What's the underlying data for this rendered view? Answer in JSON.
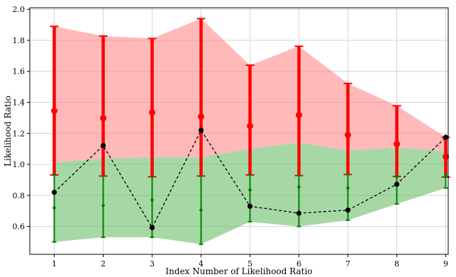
{
  "chart_data": {
    "type": "line",
    "title": "",
    "xlabel": "Index Number of Likelihood Ratio",
    "ylabel": "Likelihood Ratio",
    "xlim": [
      0.5,
      9.05
    ],
    "ylim": [
      0.42,
      2.01
    ],
    "x": [
      1,
      2,
      3,
      4,
      5,
      6,
      7,
      8,
      9
    ],
    "xticks": [
      "1",
      "2",
      "3",
      "4",
      "5",
      "6",
      "7",
      "8",
      "9"
    ],
    "yticks": [
      "0.6",
      "0.8",
      "1.0",
      "1.2",
      "1.4",
      "1.6",
      "1.8",
      "2.0"
    ],
    "grid": true,
    "colors": {
      "red": "#ff0000",
      "red_band": "#ff8080",
      "green": "#008000",
      "green_band": "#5cb85c",
      "line": "#000000"
    },
    "series": [
      {
        "kind": "errorbar",
        "color": "red",
        "center": [
          1.345,
          1.298,
          1.335,
          1.308,
          1.248,
          1.318,
          1.19,
          1.132,
          1.05
        ],
        "lower": [
          0.932,
          0.925,
          0.92,
          0.925,
          0.932,
          0.928,
          0.935,
          0.922,
          0.918
        ],
        "upper": [
          1.89,
          1.828,
          1.812,
          1.94,
          1.64,
          1.762,
          1.522,
          1.378,
          1.175
        ]
      },
      {
        "kind": "errorbar",
        "color": "green",
        "center": [
          0.72,
          0.735,
          0.77,
          0.705,
          0.835,
          0.855,
          0.848,
          0.922,
          0.93
        ],
        "lower": [
          0.5,
          0.53,
          0.53,
          0.485,
          0.63,
          0.6,
          0.64,
          0.745,
          0.848
        ],
        "upper": [
          0.932,
          0.925,
          0.92,
          0.925,
          0.932,
          0.928,
          0.935,
          0.922,
          0.918
        ]
      },
      {
        "kind": "band",
        "color": "red_band",
        "lower": [
          1.012,
          1.038,
          1.045,
          1.045,
          1.1,
          1.14,
          1.09,
          1.108,
          1.085
        ],
        "upper": [
          1.89,
          1.828,
          1.812,
          1.94,
          1.64,
          1.762,
          1.522,
          1.378,
          1.175
        ]
      },
      {
        "kind": "band",
        "color": "green_band",
        "lower": [
          0.5,
          0.53,
          0.53,
          0.485,
          0.63,
          0.6,
          0.64,
          0.745,
          0.848
        ],
        "upper": [
          1.012,
          1.038,
          1.045,
          1.045,
          1.1,
          1.14,
          1.09,
          1.108,
          1.085
        ]
      },
      {
        "kind": "dashed_line",
        "color": "line",
        "values": [
          0.82,
          1.122,
          0.592,
          1.22,
          0.73,
          0.685,
          0.705,
          0.872,
          1.175
        ]
      }
    ]
  }
}
